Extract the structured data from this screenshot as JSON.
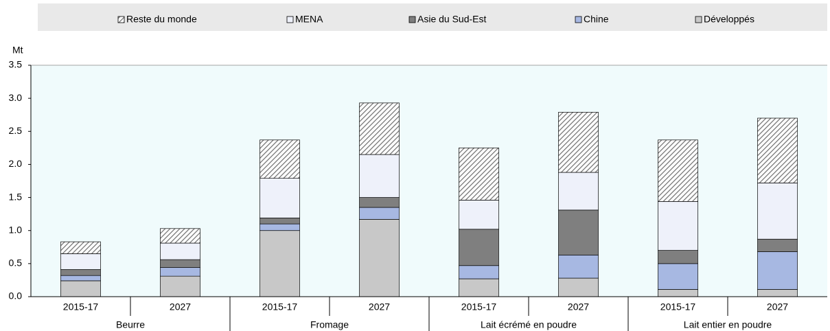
{
  "chart_data": {
    "type": "stacked_bar",
    "y_label": "Mt",
    "categories": [
      "2015-17",
      "2027",
      "2015-17",
      "2027",
      "2015-17",
      "2027",
      "2015-17",
      "2027"
    ],
    "groups": [
      "Beurre",
      "Fromage",
      "Lait écrémé en poudre",
      "Lait entier en poudre"
    ],
    "series": [
      {
        "name": "Développés",
        "color": "#c8c8c8",
        "values": [
          0.24,
          0.31,
          1.0,
          1.17,
          0.27,
          0.28,
          0.11,
          0.11
        ]
      },
      {
        "name": "Chine",
        "color": "#a7b8e2",
        "values": [
          0.08,
          0.13,
          0.1,
          0.18,
          0.2,
          0.35,
          0.39,
          0.57
        ]
      },
      {
        "name": "Asie du Sud-Est",
        "color": "#7f7f7f",
        "values": [
          0.09,
          0.12,
          0.09,
          0.15,
          0.55,
          0.68,
          0.2,
          0.19
        ]
      },
      {
        "name": "MENA",
        "color": "#eef1fa",
        "values": [
          0.24,
          0.25,
          0.6,
          0.65,
          0.44,
          0.57,
          0.74,
          0.85
        ]
      },
      {
        "name": "Reste du monde",
        "color": "#6e6e6e",
        "hatch": true,
        "values": [
          0.18,
          0.22,
          0.58,
          0.78,
          0.79,
          0.91,
          0.93,
          0.98
        ]
      }
    ],
    "ylim": [
      0,
      3.5
    ],
    "yticks": [
      {
        "value": 0,
        "label": "0.0"
      },
      0.5,
      {
        "value": 1,
        "label": "1.0"
      },
      1.5,
      {
        "value": 2,
        "label": "2.0"
      },
      2.5,
      {
        "value": 3,
        "label": "3.0"
      },
      3.5
    ],
    "legend_position": "top"
  }
}
